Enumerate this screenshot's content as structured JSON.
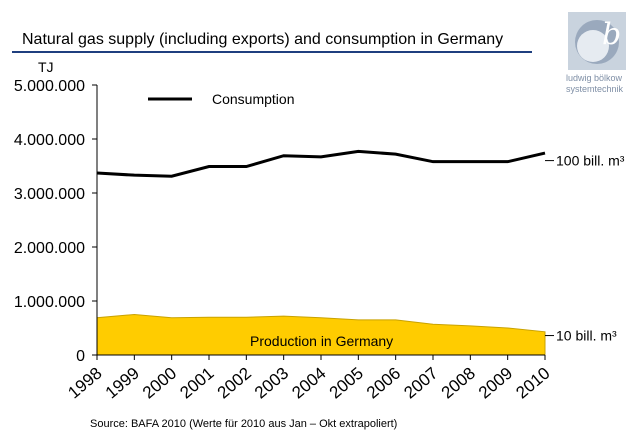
{
  "header": {
    "title": "Natural gas supply (including exports) and consumption in Germany"
  },
  "logo": {
    "icon": "bolkow-b-logo-icon",
    "line1": "ludwig bölkow",
    "line2": "systemtechnik"
  },
  "footer": {
    "source": "Source: BAFA 2010 (Werte für 2010 aus Jan – Okt extrapoliert)"
  },
  "chart_data": {
    "type": "area",
    "y_unit": "TJ",
    "x": [
      "1998",
      "1999",
      "2000",
      "2001",
      "2002",
      "2003",
      "2004",
      "2005",
      "2006",
      "2007",
      "2008",
      "2009",
      "2010"
    ],
    "ylim": [
      0,
      5000000
    ],
    "yticks": [
      0,
      1000000,
      2000000,
      3000000,
      4000000,
      5000000
    ],
    "ytick_labels": [
      "0",
      "1.000.000",
      "2.000.000",
      "3.000.000",
      "4.000.000",
      "5.000.000"
    ],
    "grid": false,
    "series": [
      {
        "name": "Consumption",
        "type": "line",
        "color": "#000000",
        "values": [
          3370000,
          3330000,
          3310000,
          3490000,
          3490000,
          3690000,
          3670000,
          3770000,
          3720000,
          3580000,
          3580000,
          3580000,
          3740000
        ]
      },
      {
        "name": "Production in Germany",
        "type": "area",
        "color": "#ffcc00",
        "values": [
          690000,
          750000,
          690000,
          700000,
          700000,
          720000,
          690000,
          650000,
          650000,
          570000,
          540000,
          500000,
          430000
        ]
      }
    ],
    "annotations": [
      {
        "text": "100 bill. m³",
        "value": 3600000
      },
      {
        "text": "10 bill. m³",
        "value": 360000
      }
    ]
  }
}
